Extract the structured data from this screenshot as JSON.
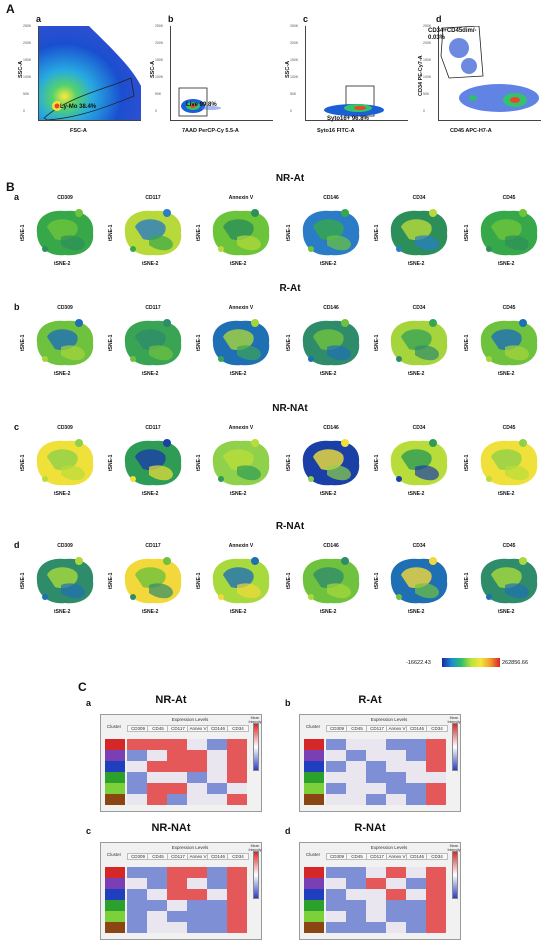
{
  "panelA": {
    "label": "A",
    "plots": [
      {
        "letter": "a",
        "ylab": "SSC-A",
        "xlab": "FSC-A",
        "gate": "Ly-Mo 38.4%"
      },
      {
        "letter": "b",
        "ylab": "SSC-A",
        "xlab": "7AAD PerCP-Cy 5.5-A",
        "gate": "Live 99.8%"
      },
      {
        "letter": "c",
        "ylab": "SSC-A",
        "xlab": "Syto16 FITC-A",
        "gate": "Syto16+ 96.8%"
      },
      {
        "letter": "d",
        "ylab": "CD34 PE-Cy7-A",
        "xlab": "CD45 APC-H7-A",
        "gate": "CD34+CD45dim/- 0.03%"
      }
    ],
    "ticks": [
      "250K",
      "200K",
      "150K",
      "100K",
      "50K",
      "0"
    ]
  },
  "panelB": {
    "label": "B",
    "markers": [
      "CD309",
      "CD117",
      "Annexin V",
      "CD146",
      "CD34",
      "CD45"
    ],
    "ylab": "tSNE-1",
    "xlab": "tSNE-2",
    "groups": [
      {
        "letter": "a",
        "title": "NR-At"
      },
      {
        "letter": "b",
        "title": "R-At"
      },
      {
        "letter": "c",
        "title": "NR-NAt"
      },
      {
        "letter": "d",
        "title": "R-NAt"
      }
    ],
    "scale_min": "-16622.43",
    "scale_max": "262856.66"
  },
  "panelC": {
    "label": "C",
    "header_group": "Expression Levels",
    "cluster_label": "Cluster",
    "columns": [
      "CD309",
      "CD45",
      "CD117",
      "Annex V",
      "CD146",
      "CD34"
    ],
    "legend_label": "Mean Intensity",
    "cluster_colors": [
      "#d62728",
      "#7b3fb5",
      "#1f3fbf",
      "#2ca02c",
      "#7bd13a",
      "#8b4513"
    ],
    "heatmaps": [
      {
        "letter": "a",
        "title": "NR-At"
      },
      {
        "letter": "b",
        "title": "R-At"
      },
      {
        "letter": "c",
        "title": "NR-NAt"
      },
      {
        "letter": "d",
        "title": "R-NAt"
      }
    ]
  }
}
